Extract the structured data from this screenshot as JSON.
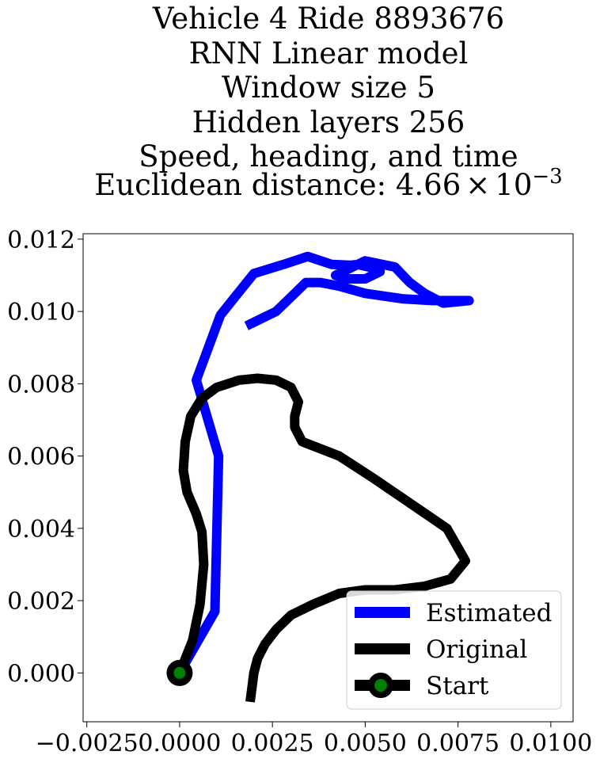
{
  "chart_data": {
    "type": "line",
    "title_lines": [
      "Vehicle 4 Ride 8893676",
      "RNN Linear model",
      "Window size 5",
      "Hidden layers 256",
      "Speed, heading, and time"
    ],
    "title_distance_prefix": "Euclidean distance: ",
    "title_distance_mantissa": "4.66",
    "title_distance_times": "×",
    "title_distance_base": "10",
    "title_distance_exponent": "−3",
    "xlim": [
      -0.0026,
      0.0106
    ],
    "ylim": [
      -0.00135,
      0.01215
    ],
    "x_ticks": [
      -0.0025,
      0.0,
      0.0025,
      0.005,
      0.0075,
      0.01
    ],
    "x_tick_labels": [
      "−0.0025",
      "0.0000",
      "0.0025",
      "0.0050",
      "0.0075",
      "0.0100"
    ],
    "y_ticks": [
      0.0,
      0.002,
      0.004,
      0.006,
      0.008,
      0.01,
      0.012
    ],
    "y_tick_labels": [
      "0.000",
      "0.002",
      "0.004",
      "0.006",
      "0.008",
      "0.010",
      "0.012"
    ],
    "grid": false,
    "legend_position": "lower-right",
    "colors": {
      "estimated": "#0000ff",
      "original": "#000000",
      "start_edge": "#000000",
      "start_fill": "#008000"
    },
    "series": [
      {
        "name": "Estimated",
        "color": "#0000ff",
        "x": [
          0.0,
          0.00095,
          0.00105,
          0.00045,
          0.0011,
          0.002,
          0.0028,
          0.00345,
          0.0041,
          0.0046,
          0.0048,
          0.0052,
          0.0054,
          0.005,
          0.0045,
          0.0042,
          0.0044,
          0.005,
          0.0058,
          0.0062,
          0.0066,
          0.0071,
          0.0078,
          0.0073,
          0.0068,
          0.006,
          0.005,
          0.0043,
          0.0038,
          0.0034,
          0.0033,
          0.003,
          0.0026,
          0.0022,
          0.0018
        ],
        "y": [
          0.0,
          0.0017,
          0.006,
          0.0081,
          0.0099,
          0.01105,
          0.0113,
          0.01152,
          0.0113,
          0.01128,
          0.0113,
          0.0112,
          0.0111,
          0.0109,
          0.0109,
          0.011,
          0.0111,
          0.0114,
          0.01123,
          0.0108,
          0.0105,
          0.01023,
          0.0103,
          0.0103,
          0.0103,
          0.01035,
          0.0105,
          0.0107,
          0.0108,
          0.0108,
          0.0107,
          0.0104,
          0.01,
          0.0098,
          0.0096
        ]
      },
      {
        "name": "Original",
        "color": "#000000",
        "x": [
          0.0,
          0.00035,
          0.00055,
          0.00065,
          0.0006,
          0.00045,
          0.0002,
          0.0001,
          0.00015,
          0.0003,
          0.0006,
          0.001,
          0.0016,
          0.0021,
          0.0026,
          0.003,
          0.0032,
          0.0031,
          0.0031,
          0.0033,
          0.0043,
          0.0052,
          0.0062,
          0.0072,
          0.0077,
          0.0073,
          0.0066,
          0.0058,
          0.005,
          0.0043,
          0.0036,
          0.003,
          0.0026,
          0.0023,
          0.0021,
          0.002,
          0.0019
        ],
        "y": [
          0.0,
          0.0009,
          0.0019,
          0.003,
          0.0039,
          0.0044,
          0.005,
          0.0056,
          0.0064,
          0.0071,
          0.0076,
          0.0079,
          0.0081,
          0.00815,
          0.0081,
          0.0079,
          0.0075,
          0.0071,
          0.0068,
          0.0064,
          0.006,
          0.0054,
          0.0047,
          0.004,
          0.0031,
          0.0026,
          0.0024,
          0.0023,
          0.0023,
          0.0022,
          0.0019,
          0.0016,
          0.0012,
          0.0008,
          0.0004,
          0.0,
          -0.0008
        ]
      }
    ],
    "start_point": {
      "name": "Start",
      "x": 0.0,
      "y": 0.0
    }
  }
}
